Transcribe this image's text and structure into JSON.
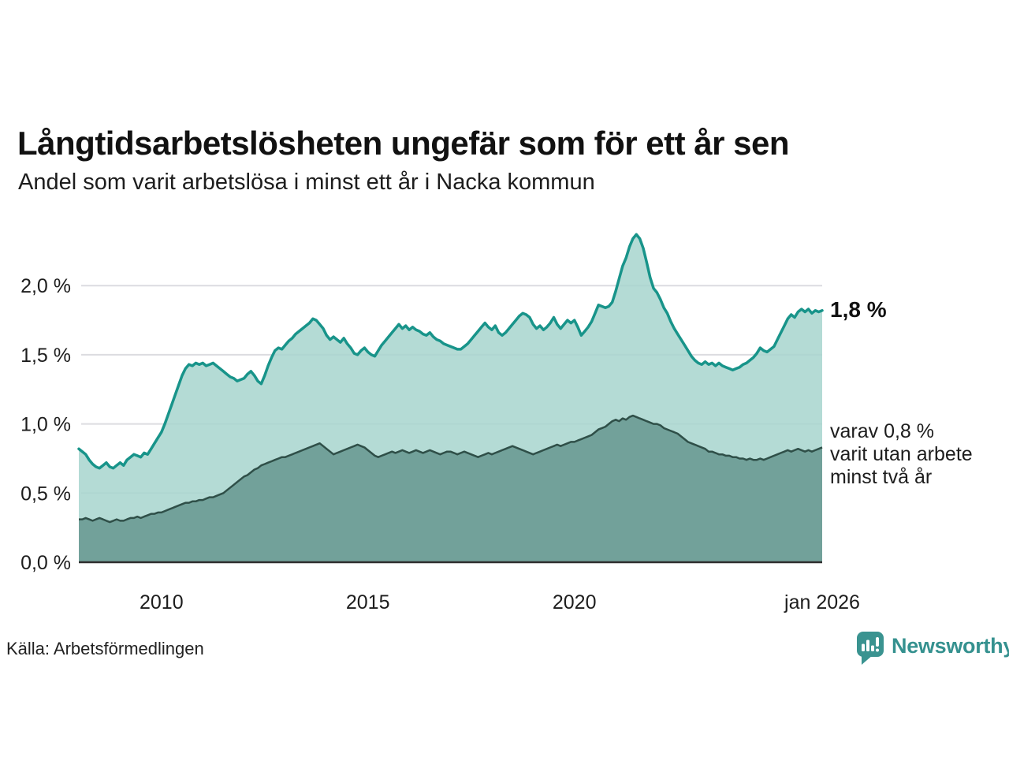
{
  "title": "Långtidsarbetslösheten ungefär som för ett år sen",
  "subtitle": "Andel som varit arbetslösa i minst ett år i Nacka kommun",
  "source": "Källa: Arbetsförmedlingen",
  "branding": {
    "name": "Newsworthy",
    "icon": "newsworthy-chart-bubble-icon",
    "color": "#35918f"
  },
  "annotations": {
    "series1_value": "1,8 %",
    "series2_note_lines": [
      "varav 0,8 %",
      "varit utan arbete",
      "minst två år"
    ]
  },
  "colors": {
    "grid": "#dcdce0",
    "axis": "#2f2f2f",
    "tick_text": "#1d1d1d",
    "background": "#ffffff"
  },
  "chart_data": {
    "type": "area",
    "title": "Långtidsarbetslösheten ungefär som för ett år sen",
    "subtitle": "Andel som varit arbetslösa i minst ett år i Nacka kommun",
    "unit": "%",
    "x_start": "2008-01",
    "x_end": "2026-01",
    "x_frequency": "monthly",
    "ylim": [
      0,
      2.4
    ],
    "grid": true,
    "y_ticks": [
      {
        "label": "0,0 %",
        "value": 0.0
      },
      {
        "label": "0,5 %",
        "value": 0.5
      },
      {
        "label": "1,0 %",
        "value": 1.0
      },
      {
        "label": "1,5 %",
        "value": 1.5
      },
      {
        "label": "2,0 %",
        "value": 2.0
      }
    ],
    "x_ticks": [
      {
        "label": "2010",
        "index": 24
      },
      {
        "label": "2015",
        "index": 84
      },
      {
        "label": "2020",
        "index": 144
      },
      {
        "label": "jan 2026",
        "index": 216
      }
    ],
    "series": [
      {
        "name": "Andel som varit arbetslösa i minst ett år",
        "end_label": "1,8 %",
        "end_value": 1.8,
        "color": "#18948a",
        "fill": "#a7d5ce",
        "values": [
          0.82,
          0.8,
          0.78,
          0.74,
          0.71,
          0.69,
          0.68,
          0.7,
          0.72,
          0.69,
          0.68,
          0.7,
          0.72,
          0.7,
          0.74,
          0.76,
          0.78,
          0.77,
          0.76,
          0.79,
          0.78,
          0.82,
          0.86,
          0.9,
          0.94,
          1.0,
          1.07,
          1.14,
          1.21,
          1.28,
          1.35,
          1.4,
          1.43,
          1.42,
          1.44,
          1.43,
          1.44,
          1.42,
          1.43,
          1.44,
          1.42,
          1.4,
          1.38,
          1.36,
          1.34,
          1.33,
          1.31,
          1.32,
          1.33,
          1.36,
          1.38,
          1.35,
          1.31,
          1.29,
          1.35,
          1.42,
          1.48,
          1.53,
          1.55,
          1.54,
          1.57,
          1.6,
          1.62,
          1.65,
          1.67,
          1.69,
          1.71,
          1.73,
          1.76,
          1.75,
          1.72,
          1.69,
          1.64,
          1.61,
          1.63,
          1.61,
          1.59,
          1.62,
          1.58,
          1.55,
          1.51,
          1.5,
          1.53,
          1.55,
          1.52,
          1.5,
          1.49,
          1.53,
          1.57,
          1.6,
          1.63,
          1.66,
          1.69,
          1.72,
          1.69,
          1.71,
          1.68,
          1.7,
          1.68,
          1.67,
          1.65,
          1.64,
          1.66,
          1.63,
          1.61,
          1.6,
          1.58,
          1.57,
          1.56,
          1.55,
          1.54,
          1.54,
          1.56,
          1.58,
          1.61,
          1.64,
          1.67,
          1.7,
          1.73,
          1.7,
          1.68,
          1.71,
          1.66,
          1.64,
          1.66,
          1.69,
          1.72,
          1.75,
          1.78,
          1.8,
          1.79,
          1.77,
          1.72,
          1.69,
          1.71,
          1.68,
          1.7,
          1.73,
          1.77,
          1.72,
          1.69,
          1.72,
          1.75,
          1.73,
          1.75,
          1.7,
          1.64,
          1.67,
          1.7,
          1.74,
          1.8,
          1.86,
          1.85,
          1.84,
          1.85,
          1.88,
          1.96,
          2.05,
          2.14,
          2.2,
          2.28,
          2.34,
          2.37,
          2.34,
          2.27,
          2.17,
          2.06,
          1.98,
          1.95,
          1.9,
          1.84,
          1.8,
          1.74,
          1.69,
          1.65,
          1.61,
          1.57,
          1.53,
          1.49,
          1.46,
          1.44,
          1.43,
          1.45,
          1.43,
          1.44,
          1.42,
          1.44,
          1.42,
          1.41,
          1.4,
          1.39,
          1.4,
          1.41,
          1.43,
          1.44,
          1.46,
          1.48,
          1.51,
          1.55,
          1.53,
          1.52,
          1.54,
          1.56,
          1.61,
          1.66,
          1.71,
          1.76,
          1.79,
          1.77,
          1.81,
          1.83,
          1.81,
          1.83,
          1.8,
          1.82,
          1.81,
          1.82
        ]
      },
      {
        "name": "varav varit utan arbete minst två år",
        "end_label": "varav 0,8 % varit utan arbete minst två år",
        "end_value": 0.8,
        "color": "#2f4f48",
        "fill": "#6f9e97",
        "values": [
          0.31,
          0.31,
          0.32,
          0.31,
          0.3,
          0.31,
          0.32,
          0.31,
          0.3,
          0.29,
          0.3,
          0.31,
          0.3,
          0.3,
          0.31,
          0.32,
          0.32,
          0.33,
          0.32,
          0.33,
          0.34,
          0.35,
          0.35,
          0.36,
          0.36,
          0.37,
          0.38,
          0.39,
          0.4,
          0.41,
          0.42,
          0.43,
          0.43,
          0.44,
          0.44,
          0.45,
          0.45,
          0.46,
          0.47,
          0.47,
          0.48,
          0.49,
          0.5,
          0.52,
          0.54,
          0.56,
          0.58,
          0.6,
          0.62,
          0.63,
          0.65,
          0.67,
          0.68,
          0.7,
          0.71,
          0.72,
          0.73,
          0.74,
          0.75,
          0.76,
          0.76,
          0.77,
          0.78,
          0.79,
          0.8,
          0.81,
          0.82,
          0.83,
          0.84,
          0.85,
          0.86,
          0.84,
          0.82,
          0.8,
          0.78,
          0.79,
          0.8,
          0.81,
          0.82,
          0.83,
          0.84,
          0.85,
          0.84,
          0.83,
          0.81,
          0.79,
          0.77,
          0.76,
          0.77,
          0.78,
          0.79,
          0.8,
          0.79,
          0.8,
          0.81,
          0.8,
          0.79,
          0.8,
          0.81,
          0.8,
          0.79,
          0.8,
          0.81,
          0.8,
          0.79,
          0.78,
          0.79,
          0.8,
          0.8,
          0.79,
          0.78,
          0.79,
          0.8,
          0.79,
          0.78,
          0.77,
          0.76,
          0.77,
          0.78,
          0.79,
          0.78,
          0.79,
          0.8,
          0.81,
          0.82,
          0.83,
          0.84,
          0.83,
          0.82,
          0.81,
          0.8,
          0.79,
          0.78,
          0.79,
          0.8,
          0.81,
          0.82,
          0.83,
          0.84,
          0.85,
          0.84,
          0.85,
          0.86,
          0.87,
          0.87,
          0.88,
          0.89,
          0.9,
          0.91,
          0.92,
          0.94,
          0.96,
          0.97,
          0.98,
          1.0,
          1.02,
          1.03,
          1.02,
          1.04,
          1.03,
          1.05,
          1.06,
          1.05,
          1.04,
          1.03,
          1.02,
          1.01,
          1.0,
          1.0,
          0.99,
          0.97,
          0.96,
          0.95,
          0.94,
          0.93,
          0.91,
          0.89,
          0.87,
          0.86,
          0.85,
          0.84,
          0.83,
          0.82,
          0.8,
          0.8,
          0.79,
          0.78,
          0.78,
          0.77,
          0.77,
          0.76,
          0.76,
          0.75,
          0.75,
          0.74,
          0.75,
          0.74,
          0.74,
          0.75,
          0.74,
          0.75,
          0.76,
          0.77,
          0.78,
          0.79,
          0.8,
          0.81,
          0.8,
          0.81,
          0.82,
          0.81,
          0.8,
          0.81,
          0.8,
          0.81,
          0.82,
          0.83
        ]
      }
    ]
  }
}
